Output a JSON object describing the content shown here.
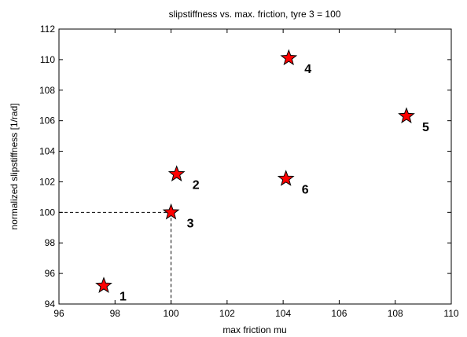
{
  "chart_data": {
    "type": "scatter",
    "title": "slipstiffness vs. max. friction, tyre 3 = 100",
    "xlabel": "max friction mu",
    "ylabel": "normalized slipstiffness [1/rad]",
    "xlim": [
      96,
      110
    ],
    "ylim": [
      94,
      112
    ],
    "xticks": [
      "96",
      "98",
      "100",
      "102",
      "104",
      "106",
      "108",
      "110"
    ],
    "yticks": [
      "94",
      "96",
      "98",
      "100",
      "102",
      "104",
      "106",
      "108",
      "110",
      "112"
    ],
    "grid": false,
    "marker": "star",
    "marker_color": "#ff0000",
    "points": [
      {
        "label": "1",
        "x": 97.6,
        "y": 95.2
      },
      {
        "label": "2",
        "x": 100.2,
        "y": 102.5
      },
      {
        "label": "3",
        "x": 100.0,
        "y": 100.0
      },
      {
        "label": "4",
        "x": 104.2,
        "y": 110.1
      },
      {
        "label": "5",
        "x": 108.4,
        "y": 106.3
      },
      {
        "label": "6",
        "x": 104.1,
        "y": 102.2
      }
    ],
    "reference_point": {
      "x": 100,
      "y": 100
    }
  }
}
